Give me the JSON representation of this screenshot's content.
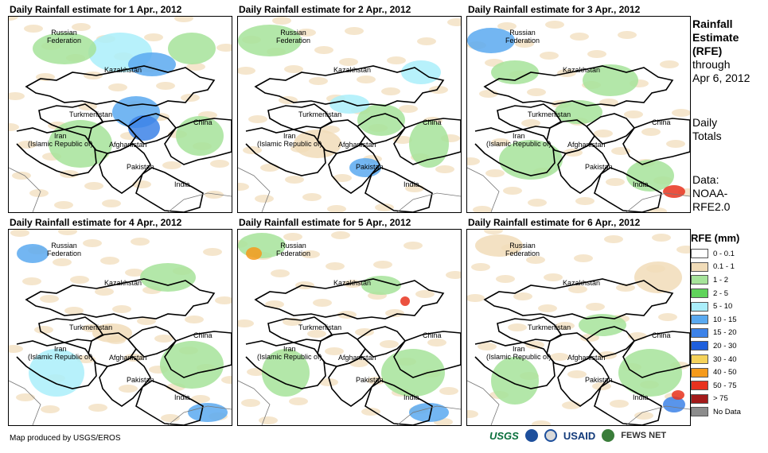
{
  "panels": [
    {
      "title": "Daily Rainfall estimate for 1 Apr., 2012"
    },
    {
      "title": "Daily Rainfall estimate for 2 Apr., 2012"
    },
    {
      "title": "Daily Rainfall estimate for 3 Apr., 2012"
    },
    {
      "title": "Daily Rainfall estimate for 4 Apr., 2012"
    },
    {
      "title": "Daily Rainfall estimate for 5 Apr., 2012"
    },
    {
      "title": "Daily Rainfall estimate for 6 Apr., 2012"
    }
  ],
  "map_labels": {
    "russia": "Russian\nFederation",
    "kazakhstan": "Kazakhstan",
    "turkmenistan": "Turkmenistan",
    "china": "China",
    "iran": "Iran\n(Islamic Republic of)",
    "afghanistan": "Afghanistan",
    "pakistan": "Pakistan",
    "india": "India"
  },
  "side_text": {
    "title_line1": "Rainfall",
    "title_line2": "Estimate",
    "title_line3": "(RFE)",
    "through": "through",
    "date": "Apr 6, 2012",
    "totals1": "Daily",
    "totals2": "Totals",
    "data1": "Data:",
    "data2": "NOAA-",
    "data3": "RFE2.0"
  },
  "legend": {
    "title": "RFE (mm)",
    "items": [
      {
        "label": "0 - 0.1",
        "color": "#ffffff"
      },
      {
        "label": "0.1 - 1",
        "color": "#f1dcb8"
      },
      {
        "label": "1 - 2",
        "color": "#a6e39a"
      },
      {
        "label": "2 - 5",
        "color": "#5fd35a"
      },
      {
        "label": "5 - 10",
        "color": "#aaeefa"
      },
      {
        "label": "10 - 15",
        "color": "#5aa9f0"
      },
      {
        "label": "15 - 20",
        "color": "#3c82e8"
      },
      {
        "label": "20 - 30",
        "color": "#1f5fdc"
      },
      {
        "label": "30 - 40",
        "color": "#f5d25a"
      },
      {
        "label": "40 - 50",
        "color": "#f59a1c"
      },
      {
        "label": "50 - 75",
        "color": "#e8321e"
      },
      {
        "label": "> 75",
        "color": "#a31a1a"
      },
      {
        "label": "No Data",
        "color": "#8c8c8c"
      }
    ]
  },
  "footer": "Map produced by USGS/EROS",
  "logos": {
    "usgs": "USGS",
    "usaid": "USAID",
    "fews": "FEWS NET"
  }
}
